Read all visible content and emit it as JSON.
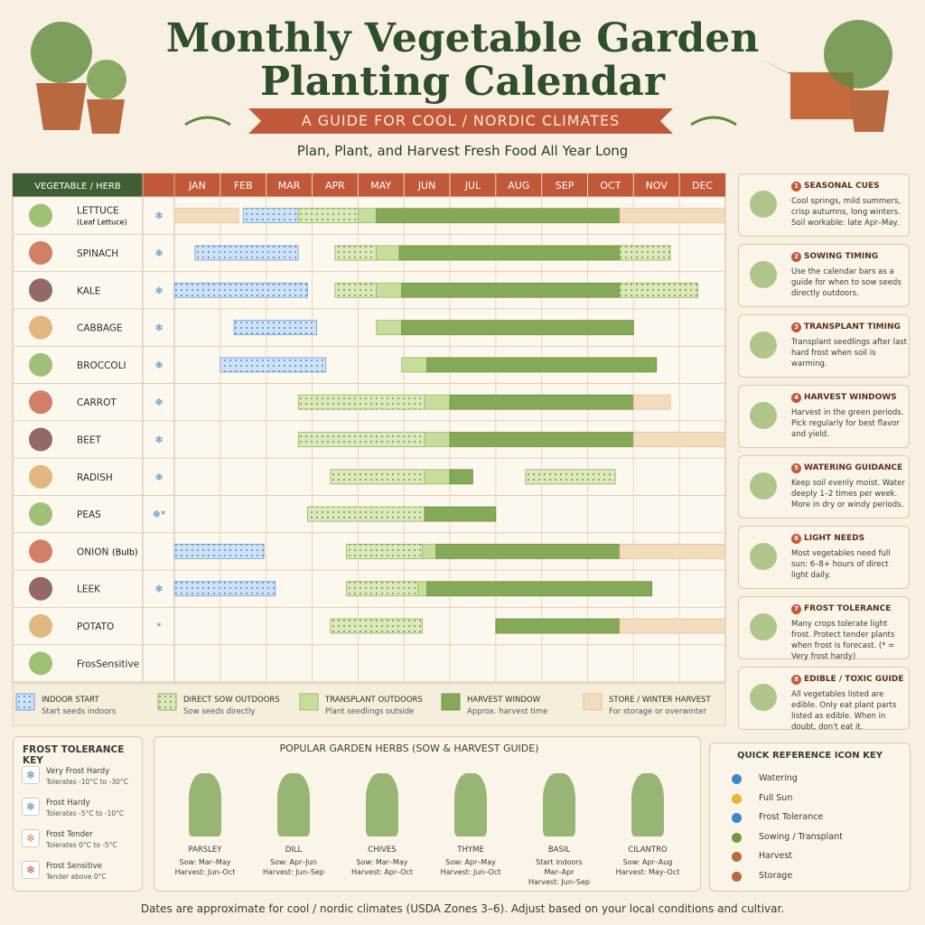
{
  "header": {
    "title_lines": [
      "Monthly Vegetable Garden",
      "Planting Calendar"
    ],
    "banner": "A GUIDE FOR COOL / NORDIC CLIMATES",
    "subtitle": "Plan, Plant, and Harvest Fresh Food All Year Long"
  },
  "table": {
    "name_header": "VEGETABLE / HERB",
    "months": [
      "JAN",
      "FEB",
      "MAR",
      "APR",
      "MAY",
      "JUN",
      "JUL",
      "AUG",
      "SEP",
      "OCT",
      "NOV",
      "DEC"
    ],
    "rows": [
      {
        "name": "LETTUCE",
        "note": "(Leaf Lettuce)",
        "frost": "❄",
        "periods": [
          {
            "kind": "store",
            "start": 0,
            "end": 1.4
          },
          {
            "kind": "indoor",
            "start": 1.5,
            "end": 2.7
          },
          {
            "kind": "direct",
            "start": 2.7,
            "end": 4.0
          },
          {
            "kind": "transplant",
            "start": 4.0,
            "end": 4.4
          },
          {
            "kind": "harvest",
            "start": 4.4,
            "end": 9.7
          },
          {
            "kind": "store",
            "start": 9.7,
            "end": 12
          }
        ]
      },
      {
        "name": "SPINACH",
        "frost": "❄",
        "periods": [
          {
            "kind": "indoor",
            "start": 0.45,
            "end": 2.7
          },
          {
            "kind": "direct",
            "start": 3.5,
            "end": 4.4
          },
          {
            "kind": "transplant",
            "start": 4.4,
            "end": 4.9
          },
          {
            "kind": "harvest",
            "start": 4.9,
            "end": 9.7
          },
          {
            "kind": "direct",
            "start": 9.7,
            "end": 10.8
          }
        ]
      },
      {
        "name": "KALE",
        "frost": "❄",
        "periods": [
          {
            "kind": "indoor",
            "start": 0,
            "end": 2.9
          },
          {
            "kind": "direct",
            "start": 3.5,
            "end": 4.4
          },
          {
            "kind": "transplant",
            "start": 4.4,
            "end": 4.95
          },
          {
            "kind": "harvest",
            "start": 4.95,
            "end": 9.7
          },
          {
            "kind": "direct",
            "start": 9.7,
            "end": 11.4
          }
        ]
      },
      {
        "name": "CABBAGE",
        "frost": "❄",
        "periods": [
          {
            "kind": "indoor",
            "start": 1.3,
            "end": 3.1
          },
          {
            "kind": "transplant",
            "start": 4.4,
            "end": 4.95
          },
          {
            "kind": "harvest",
            "start": 4.95,
            "end": 10.0
          }
        ]
      },
      {
        "name": "BROCCOLI",
        "frost": "❄",
        "periods": [
          {
            "kind": "indoor",
            "start": 1.0,
            "end": 3.3
          },
          {
            "kind": "transplant",
            "start": 4.95,
            "end": 5.5
          },
          {
            "kind": "harvest",
            "start": 5.5,
            "end": 10.5
          }
        ]
      },
      {
        "name": "CARROT",
        "frost": "❄",
        "periods": [
          {
            "kind": "direct",
            "start": 2.7,
            "end": 5.45
          },
          {
            "kind": "transplant",
            "start": 5.45,
            "end": 6.0
          },
          {
            "kind": "harvest",
            "start": 6.0,
            "end": 10.0
          },
          {
            "kind": "store",
            "start": 10.0,
            "end": 10.8
          }
        ]
      },
      {
        "name": "BEET",
        "frost": "❄",
        "periods": [
          {
            "kind": "direct",
            "start": 2.7,
            "end": 5.45
          },
          {
            "kind": "transplant",
            "start": 5.45,
            "end": 6.0
          },
          {
            "kind": "harvest",
            "start": 6.0,
            "end": 10.0
          },
          {
            "kind": "store",
            "start": 10.0,
            "end": 12
          }
        ]
      },
      {
        "name": "RADISH",
        "frost": "❄",
        "periods": [
          {
            "kind": "direct",
            "start": 3.4,
            "end": 5.45
          },
          {
            "kind": "transplant",
            "start": 5.45,
            "end": 6.0
          },
          {
            "kind": "harvest",
            "start": 6.0,
            "end": 6.5
          },
          {
            "kind": "direct",
            "start": 7.65,
            "end": 9.6
          }
        ]
      },
      {
        "name": "PEAS",
        "frost": "❄*",
        "periods": [
          {
            "kind": "direct",
            "start": 2.9,
            "end": 5.45
          },
          {
            "kind": "harvest",
            "start": 5.45,
            "end": 7.0
          }
        ]
      },
      {
        "name": "ONION",
        "note": "(Bulb)",
        "periods": [
          {
            "kind": "indoor",
            "start": 0,
            "end": 1.95
          },
          {
            "kind": "direct",
            "start": 3.75,
            "end": 5.4
          },
          {
            "kind": "transplant",
            "start": 5.4,
            "end": 5.7
          },
          {
            "kind": "harvest",
            "start": 5.7,
            "end": 9.7
          },
          {
            "kind": "store",
            "start": 9.7,
            "end": 12
          }
        ]
      },
      {
        "name": "LEEK",
        "frost": "❄",
        "periods": [
          {
            "kind": "indoor",
            "start": 0,
            "end": 2.2
          },
          {
            "kind": "direct",
            "start": 3.75,
            "end": 5.3
          },
          {
            "kind": "transplant",
            "start": 5.3,
            "end": 5.5
          },
          {
            "kind": "harvest",
            "start": 5.5,
            "end": 10.4
          }
        ]
      },
      {
        "name": "POTATO",
        "frost": "*",
        "periods": [
          {
            "kind": "direct",
            "start": 3.4,
            "end": 5.4
          },
          {
            "kind": "harvest",
            "start": 7.0,
            "end": 9.7
          },
          {
            "kind": "store",
            "start": 9.7,
            "end": 12
          }
        ]
      },
      {
        "name": "FrosSensitive",
        "periods": []
      }
    ]
  },
  "legend": [
    {
      "kind": "indoor",
      "title": "INDOOR START",
      "text": "Start seeds indoors"
    },
    {
      "kind": "direct",
      "title": "DIRECT SOW OUTDOORS",
      "text": "Sow seeds directly"
    },
    {
      "kind": "transplant",
      "title": "TRANSPLANT OUTDOORS",
      "text": "Plant seedlings outside"
    },
    {
      "kind": "harvest",
      "title": "HARVEST WINDOW",
      "text": "Approx. harvest time"
    },
    {
      "kind": "store",
      "title": "STORE / WINTER HARVEST",
      "text": "For storage or overwinter"
    }
  ],
  "cards": [
    {
      "number": 1,
      "title": "SEASONAL CUES",
      "text": "Cool springs, mild summers, crisp autumns, long winters. Soil workable: late Apr–May."
    },
    {
      "number": 2,
      "title": "SOWING TIMING",
      "text": "Use the calendar bars as a guide for when to sow seeds directly outdoors."
    },
    {
      "number": 3,
      "title": "TRANSPLANT TIMING",
      "text": "Transplant seedlings after last hard frost when soil is warming."
    },
    {
      "number": 4,
      "title": "HARVEST WINDOWS",
      "text": "Harvest in the green periods. Pick regularly for best flavor and yield."
    },
    {
      "number": 5,
      "title": "WATERING GUIDANCE",
      "text": "Keep soil evenly moist. Water deeply 1–2 times per week. More in dry or windy periods."
    },
    {
      "number": 6,
      "title": "LIGHT NEEDS",
      "text": "Most vegetables need full sun: 6–8+ hours of direct light daily."
    },
    {
      "number": 7,
      "title": "FROST TOLERANCE",
      "text": "Many crops tolerate light frost. Protect tender plants when frost is forecast. (* = Very frost hardy)"
    },
    {
      "number": 8,
      "title": "EDIBLE / TOXIC GUIDE",
      "text": "All vegetables listed are edible. Only eat plant parts listed as edible. When in doubt, don't eat it."
    }
  ],
  "frost_key": {
    "title": "FROST TOLERANCE KEY",
    "items": [
      {
        "title": "Very Frost Hardy",
        "text": "Tolerates -10°C to -30°C",
        "color": "#3f86c9"
      },
      {
        "title": "Frost Hardy",
        "text": "Tolerates -5°C to -10°C",
        "color": "#3f86c9"
      },
      {
        "title": "Frost Tender",
        "text": "Tolerates 0°C to -5°C",
        "color": "#e08a3a"
      },
      {
        "title": "Frost Sensitive",
        "text": "Tender above 0°C",
        "color": "#d3493a"
      }
    ]
  },
  "herbs": {
    "title": "POPULAR GARDEN HERBS (SOW & HARVEST GUIDE)",
    "items": [
      {
        "name": "PARSLEY",
        "lines": [
          "Sow: Mar–May",
          "Harvest: Jun–Oct"
        ]
      },
      {
        "name": "DILL",
        "lines": [
          "Sow: Apr–Jun",
          "Harvest: Jun–Sep"
        ]
      },
      {
        "name": "CHIVES",
        "lines": [
          "Sow: Mar–May",
          "Harvest: Apr–Oct"
        ]
      },
      {
        "name": "THYME",
        "lines": [
          "Sow: Apr–May",
          "Harvest: Jun–Oct"
        ]
      },
      {
        "name": "BASIL",
        "lines": [
          "Start indoors",
          "Mar–Apr",
          "Harvest: Jun–Sep"
        ]
      },
      {
        "name": "CILANTRO",
        "lines": [
          "Sow: Apr–Aug",
          "Harvest: May–Oct"
        ]
      }
    ]
  },
  "icon_key": {
    "title": "QUICK REFERENCE ICON KEY",
    "items": [
      "Watering",
      "Full Sun",
      "Frost Tolerance",
      "Sowing / Transplant",
      "Harvest",
      "Storage"
    ]
  },
  "footer": "Dates are approximate for cool / nordic climates (USDA Zones 3–6). Adjust based on your local conditions and cultivar."
}
